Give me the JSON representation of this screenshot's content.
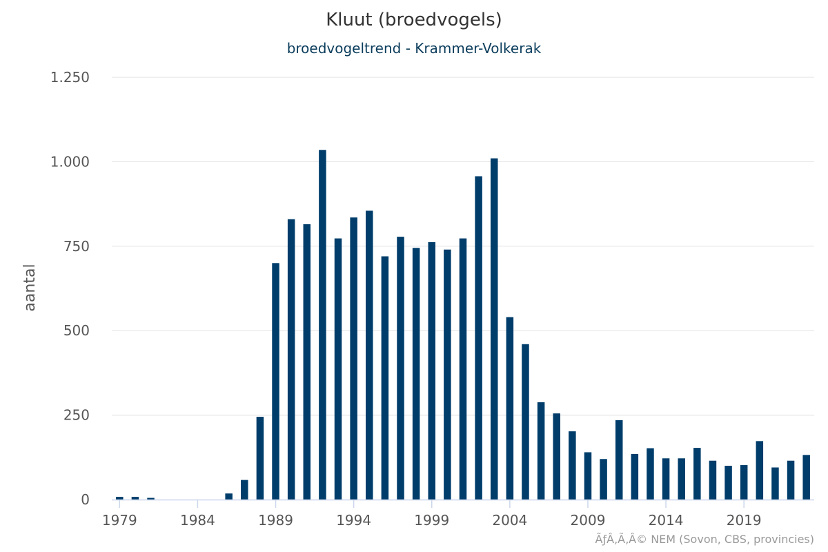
{
  "chart_data": {
    "type": "bar",
    "title": "Kluut (broedvogels)",
    "subtitle": "broedvogeltrend - Krammer-Volkerak",
    "ylabel": "aantal",
    "xlabel": "",
    "ylim": [
      0,
      1250
    ],
    "yticks": [
      0,
      250,
      500,
      750,
      1000,
      1250
    ],
    "ytick_labels": [
      "0",
      "250",
      "500",
      "750",
      "1.000",
      "1.250"
    ],
    "xticks": [
      1979,
      1984,
      1989,
      1994,
      1999,
      2004,
      2009,
      2014,
      2019
    ],
    "x": [
      1979,
      1980,
      1981,
      1982,
      1983,
      1984,
      1985,
      1986,
      1987,
      1988,
      1989,
      1990,
      1991,
      1992,
      1993,
      1994,
      1995,
      1996,
      1997,
      1998,
      1999,
      2000,
      2001,
      2002,
      2003,
      2004,
      2005,
      2006,
      2007,
      2008,
      2009,
      2010,
      2011,
      2012,
      2013,
      2014,
      2015,
      2016,
      2017,
      2018,
      2019,
      2020,
      2021,
      2022,
      2023
    ],
    "values": [
      8,
      8,
      5,
      0,
      0,
      0,
      0,
      18,
      58,
      245,
      700,
      830,
      815,
      1035,
      773,
      835,
      855,
      720,
      778,
      745,
      762,
      740,
      773,
      957,
      1010,
      540,
      460,
      288,
      255,
      202,
      140,
      120,
      235,
      135,
      152,
      122,
      122,
      153,
      115,
      100,
      102,
      173,
      95,
      115,
      132
    ],
    "grid": true,
    "bar_color": "#003d6b"
  },
  "credit": "ÃƒÂ‚Ã‚Â© NEM (Sovon, CBS, provincies)"
}
